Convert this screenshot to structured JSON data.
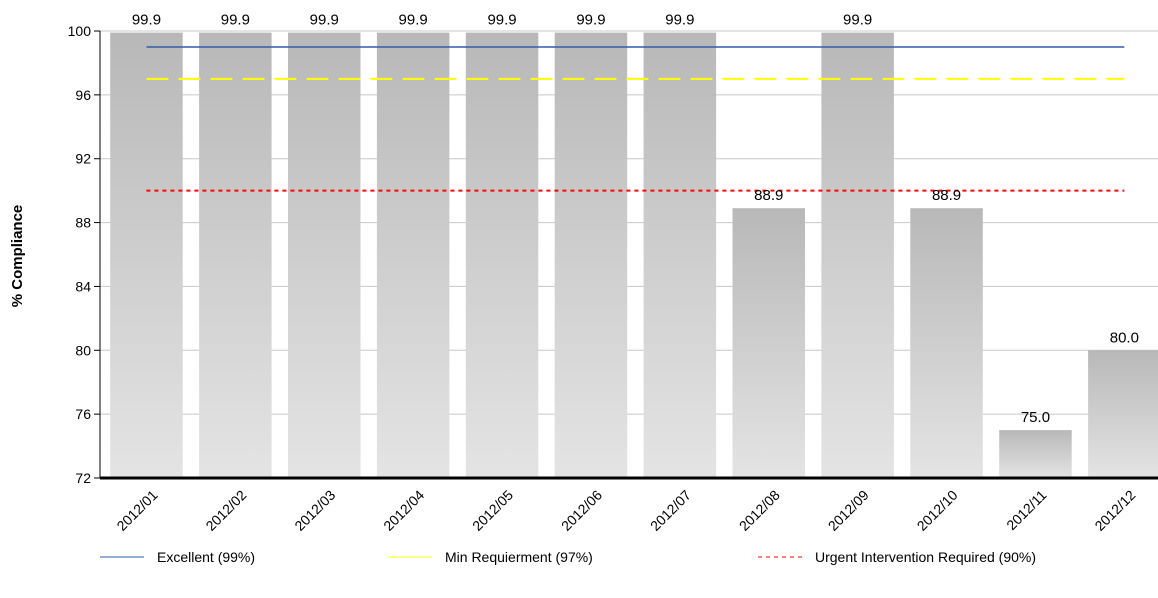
{
  "chart_data": {
    "type": "bar",
    "categories": [
      "2012/01",
      "2012/02",
      "2012/03",
      "2012/04",
      "2012/05",
      "2012/06",
      "2012/07",
      "2012/08",
      "2012/09",
      "2012/10",
      "2012/11",
      "2012/12"
    ],
    "values": [
      99.9,
      99.9,
      99.9,
      99.9,
      99.9,
      99.9,
      99.9,
      88.9,
      99.9,
      88.9,
      75.0,
      80.0
    ],
    "data_labels": [
      "99.9",
      "99.9",
      "99.9",
      "99.9",
      "99.9",
      "99.9",
      "99.9",
      "88.9",
      "99.9",
      "88.9",
      "75.0",
      "80.0"
    ],
    "ylabel": "% Compliance",
    "ylim": [
      72,
      100
    ],
    "yticks": [
      72,
      76,
      80,
      84,
      88,
      92,
      96,
      100
    ],
    "grid": true,
    "legend_position": "bottom",
    "bar_color_top": "#b8b8b8",
    "bar_color_bottom": "#e4e4e4",
    "reference_lines": [
      {
        "name": "Excellent (99%)",
        "value": 99,
        "color": "#2f5fa8",
        "style": "solid"
      },
      {
        "name": "Min Requierment (97%)",
        "value": 97,
        "color": "#ffff00",
        "style": "long-dash"
      },
      {
        "name": "Urgent Intervention Required (90%)",
        "value": 90,
        "color": "#ff0000",
        "style": "dotted"
      }
    ]
  }
}
